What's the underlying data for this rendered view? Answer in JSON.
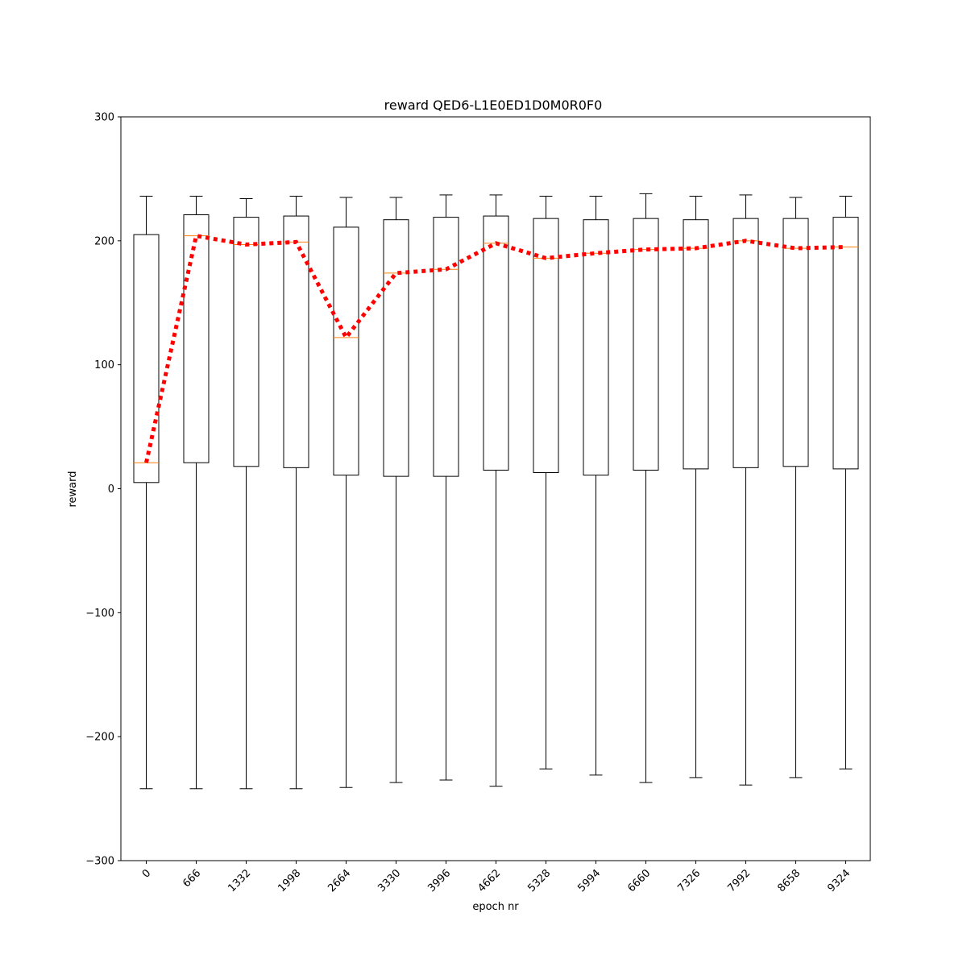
{
  "chart_data": {
    "type": "box",
    "title": "reward QED6-L1E0ED1D0M0R0F0",
    "xlabel": "epoch nr",
    "ylabel": "reward",
    "ylim": [
      -300,
      300
    ],
    "yticks": [
      -300,
      -200,
      -100,
      0,
      100,
      200,
      300
    ],
    "grid": false,
    "categories": [
      "0",
      "666",
      "1332",
      "1998",
      "2664",
      "3330",
      "3996",
      "4662",
      "5328",
      "5994",
      "6660",
      "7326",
      "7992",
      "8658",
      "9324"
    ],
    "boxes": [
      {
        "whisker_low": -242,
        "q1": 5,
        "median": 21,
        "q3": 205,
        "whisker_high": 236
      },
      {
        "whisker_low": -242,
        "q1": 21,
        "median": 204,
        "q3": 221,
        "whisker_high": 236
      },
      {
        "whisker_low": -242,
        "q1": 18,
        "median": 197,
        "q3": 219,
        "whisker_high": 234
      },
      {
        "whisker_low": -242,
        "q1": 17,
        "median": 199,
        "q3": 220,
        "whisker_high": 236
      },
      {
        "whisker_low": -241,
        "q1": 11,
        "median": 122,
        "q3": 211,
        "whisker_high": 235
      },
      {
        "whisker_low": -237,
        "q1": 10,
        "median": 174,
        "q3": 217,
        "whisker_high": 235
      },
      {
        "whisker_low": -235,
        "q1": 10,
        "median": 177,
        "q3": 219,
        "whisker_high": 237
      },
      {
        "whisker_low": -240,
        "q1": 15,
        "median": 198,
        "q3": 220,
        "whisker_high": 237
      },
      {
        "whisker_low": -226,
        "q1": 13,
        "median": 186,
        "q3": 218,
        "whisker_high": 236
      },
      {
        "whisker_low": -231,
        "q1": 11,
        "median": 190,
        "q3": 217,
        "whisker_high": 236
      },
      {
        "whisker_low": -237,
        "q1": 15,
        "median": 193,
        "q3": 218,
        "whisker_high": 238
      },
      {
        "whisker_low": -233,
        "q1": 16,
        "median": 194,
        "q3": 217,
        "whisker_high": 236
      },
      {
        "whisker_low": -239,
        "q1": 17,
        "median": 200,
        "q3": 218,
        "whisker_high": 237
      },
      {
        "whisker_low": -233,
        "q1": 18,
        "median": 194,
        "q3": 218,
        "whisker_high": 235
      },
      {
        "whisker_low": -226,
        "q1": 16,
        "median": 195,
        "q3": 219,
        "whisker_high": 236
      }
    ],
    "median_line": {
      "style": "dotted",
      "color": "#ff0000"
    },
    "colors": {
      "box": "#000000",
      "median": "#ff7f0e",
      "trend": "#ff0000"
    }
  }
}
